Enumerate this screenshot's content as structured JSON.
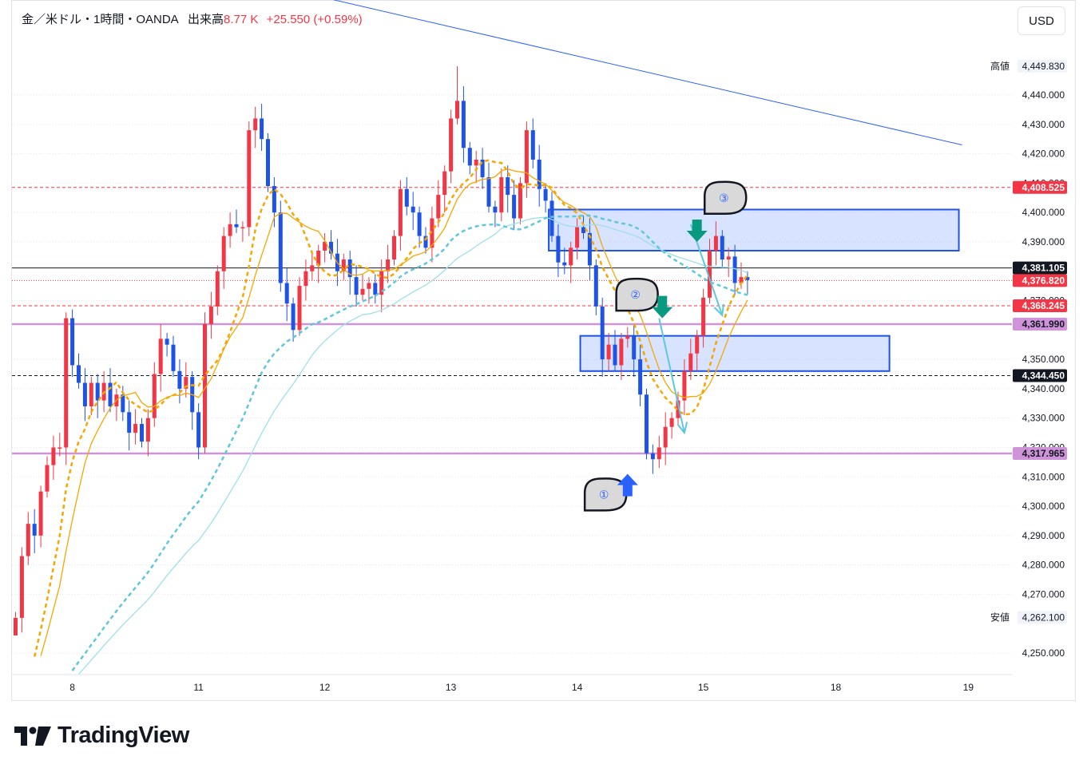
{
  "header": {
    "symbol": "金／米ドル・1時間・OANDA",
    "volume_label": "出来高",
    "volume_value": "8.77 K",
    "change": "+25.550 (+0.59%)"
  },
  "currency_button": "USD",
  "branding": {
    "logo_text": "TradingView"
  },
  "chart_data": {
    "type": "candlestick",
    "symbol": "XAUUSD",
    "timeframe": "1h",
    "ylim": [
      4244,
      4454
    ],
    "y_ticks": [
      4440,
      4430,
      4420,
      4410,
      4400,
      4390,
      4370,
      4350,
      4340,
      4330,
      4320,
      4310,
      4300,
      4290,
      4280,
      4270,
      4250
    ],
    "y_tick_labels": [
      "4,440.000",
      "4,430.000",
      "4,420.000",
      "4,410.000",
      "4,400.000",
      "4,390.000",
      "4,370.000",
      "4,350.000",
      "4,340.000",
      "4,330.000",
      "4,320.000",
      "4,310.000",
      "4,300.000",
      "4,290.000",
      "4,280.000",
      "4,270.000",
      "4,250.000"
    ],
    "x_ticks": [
      {
        "label": "8",
        "bar": 9
      },
      {
        "label": "11",
        "bar": 29
      },
      {
        "label": "12",
        "bar": 49
      },
      {
        "label": "13",
        "bar": 69
      },
      {
        "label": "14",
        "bar": 89
      },
      {
        "label": "15",
        "bar": 109
      },
      {
        "label": "18",
        "bar": 130
      },
      {
        "label": "19",
        "bar": 151
      }
    ],
    "closes": [
      4262,
      4283,
      4294,
      4290,
      4305,
      4314,
      4320,
      4320,
      4364,
      4348,
      4342,
      4334,
      4342,
      4336,
      4342,
      4334,
      4338,
      4332,
      4325,
      4328,
      4322,
      4330,
      4345,
      4357,
      4355,
      4346,
      4340,
      4344,
      4332,
      4320,
      4362,
      4368,
      4380,
      4392,
      4396,
      4395,
      4395,
      4428,
      4432,
      4425,
      4409,
      4400,
      4376,
      4369,
      4360,
      4375,
      4380,
      4382,
      4387,
      4390,
      4386,
      4380,
      4384,
      4378,
      4372,
      4374,
      4376,
      4372,
      4380,
      4384,
      4392,
      4408,
      4402,
      4400,
      4392,
      4388,
      4398,
      4406,
      4414,
      4432,
      4438,
      4422,
      4416,
      4418,
      4412,
      4402,
      4400,
      4412,
      4406,
      4398,
      4410,
      4428,
      4418,
      4408,
      4404,
      4392,
      4383,
      4382,
      4388,
      4395,
      4393,
      4382,
      4368,
      4350,
      4355,
      4348,
      4357,
      4358,
      4350,
      4338,
      4318,
      4316,
      4320,
      4327,
      4330,
      4336,
      4346,
      4352,
      4358,
      4371,
      4387,
      4392,
      4384,
      4385,
      4376,
      4378,
      4377
    ],
    "high": 4449.83,
    "low": 4262.1,
    "moving_averages": [
      {
        "color": "#f7a600",
        "style": "solid"
      },
      {
        "color": "#f7a600",
        "style": "dashed"
      },
      {
        "color": "#9de0eb",
        "style": "solid"
      },
      {
        "color": "#5fc7dc",
        "style": "dashed"
      }
    ],
    "price_tags": [
      {
        "value": 4408.525,
        "label": "4,408.525",
        "bg": "#f23645",
        "line": "dashed",
        "line_color": "#f23645"
      },
      {
        "value": 4381.105,
        "label": "4,381.105",
        "bg": "#131722",
        "line": "solid",
        "line_color": "#131722"
      },
      {
        "value": 4376.82,
        "label": "4,376.820",
        "bg": "#f23645",
        "line": "dotted",
        "line_color": "#f23645"
      },
      {
        "value": 4368.245,
        "label": "4,368.245",
        "bg": "#f23645",
        "line": "dashed",
        "line_color": "#f23645"
      },
      {
        "value": 4361.99,
        "label": "4,361.990",
        "bg": "#ce93d8",
        "line": "solid",
        "line_color": "#ce93d8"
      },
      {
        "value": 4344.45,
        "label": "4,344.450",
        "bg": "#131722",
        "line": "dashed",
        "line_color": "#131722"
      },
      {
        "value": 4317.965,
        "label": "4,317.965",
        "bg": "#ce93d8",
        "line": "solid",
        "line_color": "#ce93d8"
      }
    ],
    "hi_lo_labels": [
      {
        "tag": "高値",
        "value": 4449.83,
        "label": "4,449.830"
      },
      {
        "tag": "安値",
        "value": 4262.1,
        "label": "4,262.100"
      }
    ],
    "trendline": {
      "from": {
        "bar": 19,
        "y": 4488
      },
      "to": {
        "bar": 150,
        "y": 4423
      },
      "color": "#2962ff"
    },
    "zones": [
      {
        "x1_bar": 84.5,
        "x2_bar": 149.5,
        "y_top": 4401,
        "y_bottom": 4387
      },
      {
        "x1_bar": 89.5,
        "x2_bar": 138.5,
        "y_top": 4358,
        "y_bottom": 4346
      }
    ],
    "markers": [
      {
        "label": "①",
        "bar": 93.5,
        "y": 4304
      },
      {
        "label": "②",
        "bar": 98.5,
        "y": 4372
      },
      {
        "label": "③",
        "bar": 112.5,
        "y": 4405
      }
    ],
    "arrows": [
      {
        "type": "up",
        "bar": 97,
        "y": 4311,
        "color": "#2962ff"
      },
      {
        "type": "down",
        "bar": 102.5,
        "y": 4364,
        "color": "#089981"
      },
      {
        "type": "down",
        "bar": 108,
        "y": 4390,
        "color": "#089981"
      }
    ],
    "projections": [
      {
        "points": [
          {
            "bar": 102,
            "y": 4364
          },
          {
            "bar": 106,
            "y": 4325
          }
        ],
        "color": "#5fc7dc"
      },
      {
        "points": [
          {
            "bar": 107,
            "y": 4396
          },
          {
            "bar": 112,
            "y": 4365
          }
        ],
        "color": "#5fc7dc"
      }
    ]
  }
}
